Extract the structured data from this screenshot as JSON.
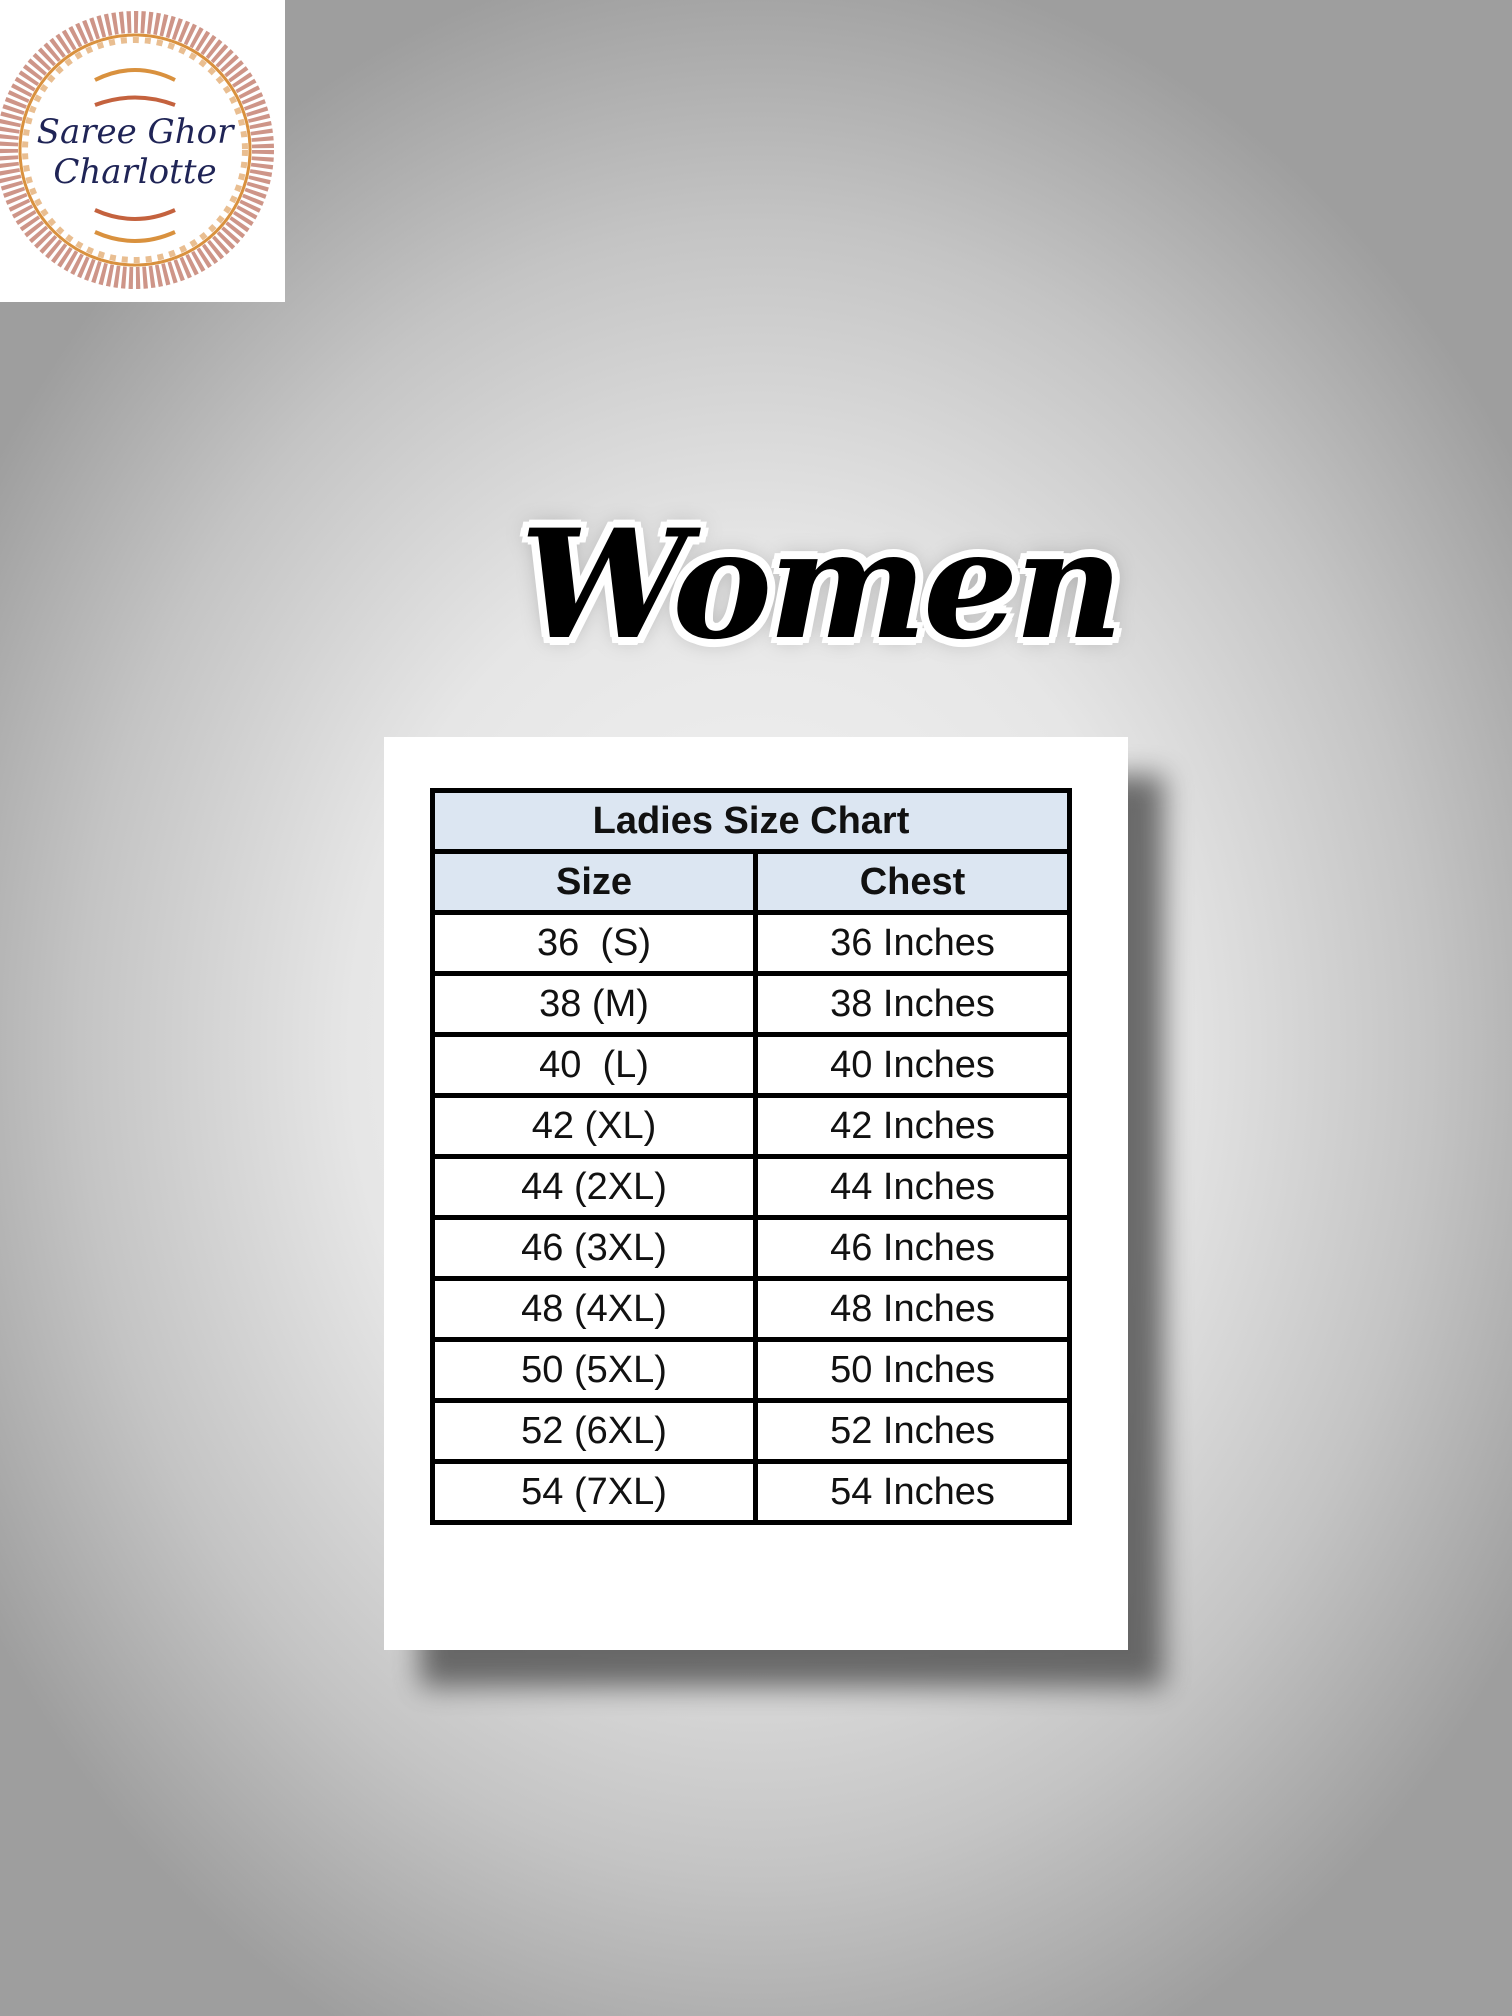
{
  "logo": {
    "line1": "Saree Ghor",
    "line2": "Charlotte",
    "colors": {
      "ornament": "#b5533c",
      "gold": "#d9913e",
      "text": "#1f2456"
    }
  },
  "heading": "Women",
  "size_chart": {
    "title": "Ladies Size Chart",
    "columns": [
      "Size",
      "Chest"
    ],
    "header_color": "#dce6f2",
    "rows": [
      [
        "36  (S)",
        "36 Inches"
      ],
      [
        "38 (M)",
        "38 Inches"
      ],
      [
        "40  (L)",
        "40 Inches"
      ],
      [
        "42 (XL)",
        "42 Inches"
      ],
      [
        "44 (2XL)",
        "44 Inches"
      ],
      [
        "46 (3XL)",
        "46 Inches"
      ],
      [
        "48 (4XL)",
        "48 Inches"
      ],
      [
        "50 (5XL)",
        "50 Inches"
      ],
      [
        "52 (6XL)",
        "52 Inches"
      ],
      [
        "54 (7XL)",
        "54 Inches"
      ]
    ]
  }
}
